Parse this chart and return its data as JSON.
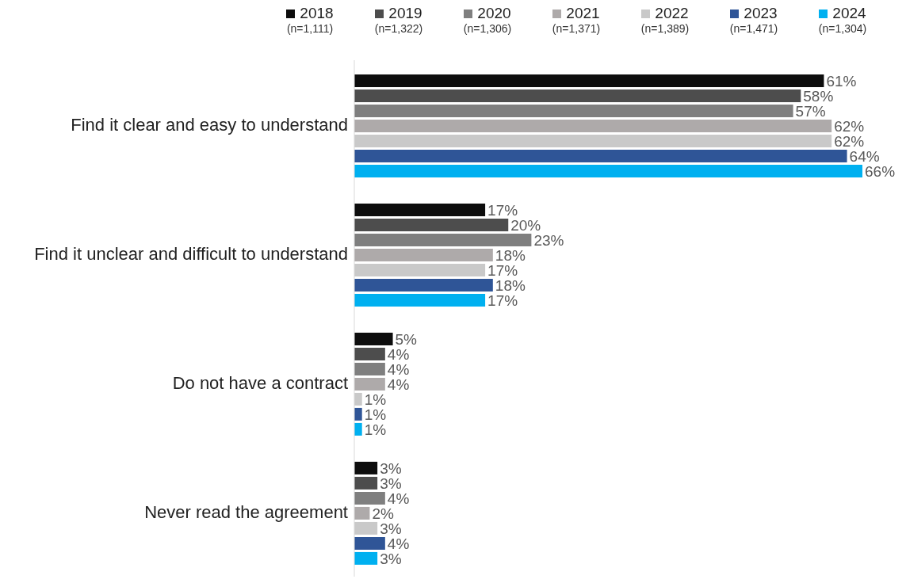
{
  "chart_data": {
    "type": "bar",
    "orientation": "horizontal",
    "categories": [
      "Find it clear and easy to understand",
      "Find it unclear and difficult to understand",
      "Do not have a contract",
      "Never read the agreement"
    ],
    "series": [
      {
        "name": "2018",
        "color": "#0d0d0d",
        "values": [
          61,
          17,
          5,
          3
        ],
        "value_labels": [
          "61%",
          "17%",
          "5%",
          "3%"
        ]
      },
      {
        "name": "2019",
        "color": "#4d4d4d",
        "values": [
          58,
          20,
          4,
          3
        ],
        "value_labels": [
          "58%",
          "20%",
          "4%",
          "3%"
        ]
      },
      {
        "name": "2020",
        "color": "#7f7f7f",
        "values": [
          57,
          23,
          4,
          4
        ],
        "value_labels": [
          "57%",
          "23%",
          "4%",
          "4%"
        ]
      },
      {
        "name": "2021",
        "color": "#aeaaaa",
        "values": [
          62,
          18,
          4,
          2
        ],
        "value_labels": [
          "62%",
          "18%",
          "4%",
          "2%"
        ]
      },
      {
        "name": "2022",
        "color": "#c9c9c9",
        "values": [
          62,
          17,
          1,
          3
        ],
        "value_labels": [
          "62%",
          "17%",
          "1%",
          "3%"
        ]
      },
      {
        "name": "2023",
        "color": "#2f5597",
        "values": [
          64,
          18,
          1,
          4
        ],
        "value_labels": [
          "64%",
          "18%",
          "1%",
          "4%"
        ]
      },
      {
        "name": "2024",
        "color": "#00b0f0",
        "values": [
          66,
          17,
          1,
          3
        ],
        "value_labels": [
          "66%",
          "17%",
          "1%",
          "3%"
        ]
      }
    ],
    "annotations": [
      "(n=1,111)",
      "(n=1,322)",
      "(n=1,306)",
      "(n=1,371)",
      "(n=1,389)",
      "(n=1,471)",
      "(n=1,304)"
    ],
    "legend": "top"
  }
}
